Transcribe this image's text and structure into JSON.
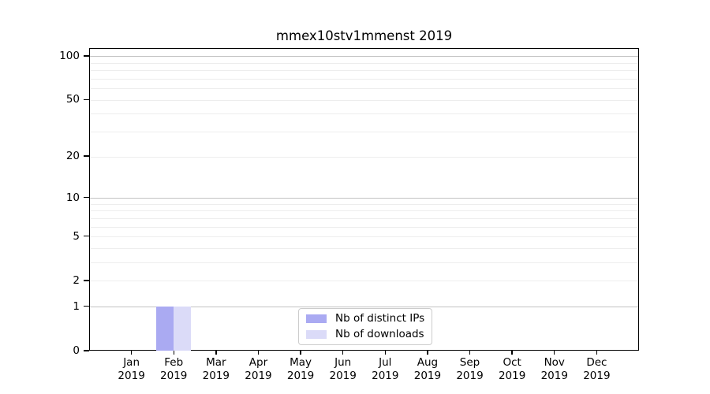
{
  "chart_data": {
    "type": "bar",
    "title": "mmex10stv1mmenst 2019",
    "x_categories": [
      "Jan",
      "Feb",
      "Mar",
      "Apr",
      "May",
      "Jun",
      "Jul",
      "Aug",
      "Sep",
      "Oct",
      "Nov",
      "Dec"
    ],
    "x_sub_label": "2019",
    "series": [
      {
        "name": "Nb of distinct IPs",
        "color": "#aaaaf2",
        "values": [
          0,
          1,
          0,
          0,
          0,
          0,
          0,
          0,
          0,
          0,
          0,
          0
        ]
      },
      {
        "name": "Nb of downloads",
        "color": "#dbdbf8",
        "values": [
          0,
          1,
          0,
          0,
          0,
          0,
          0,
          0,
          0,
          0,
          0,
          0
        ]
      }
    ],
    "y_axis": {
      "scale": "log1p",
      "tick_labels": [
        0,
        1,
        2,
        5,
        10,
        20,
        50,
        100
      ],
      "major_gridlines": [
        1,
        10,
        100
      ],
      "minor_gridlines": [
        2,
        3,
        4,
        5,
        6,
        7,
        8,
        9,
        20,
        30,
        40,
        50,
        60,
        70,
        80,
        90
      ],
      "ylim": [
        0,
        113
      ]
    },
    "legend": {
      "position": "lower-center",
      "entries": [
        "Nb of distinct IPs",
        "Nb of downloads"
      ]
    },
    "grid": true
  },
  "colors": {
    "bar_distinct_ips": "#aaaaf2",
    "bar_downloads": "#dbdbf8",
    "major_gridline": "#c2c2c2",
    "minor_gridline": "#ededed",
    "axis": "#000000",
    "legend_border": "#cccccc",
    "background": "#ffffff"
  }
}
